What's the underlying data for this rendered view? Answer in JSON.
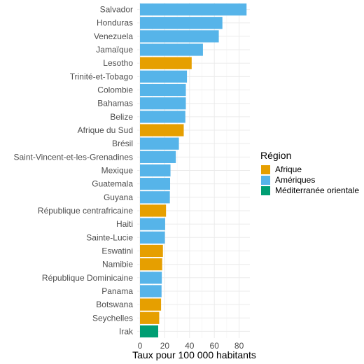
{
  "chart_data": {
    "type": "bar",
    "orientation": "horizontal",
    "categories": [
      "Salvador",
      "Honduras",
      "Venezuela",
      "Jamaïque",
      "Lesotho",
      "Trinité-et-Tobago",
      "Colombie",
      "Bahamas",
      "Belize",
      "Afrique du Sud",
      "Brésil",
      "Saint-Vincent-et-les-Grenadines",
      "Mexique",
      "Guatemala",
      "Guyana",
      "République centrafricaine",
      "Haiti",
      "Sainte-Lucie",
      "Eswatini",
      "Namibie",
      "République Dominicaine",
      "Panama",
      "Botswana",
      "Seychelles",
      "Irak"
    ],
    "values": [
      86.0,
      66.5,
      63.6,
      50.8,
      41.7,
      37.9,
      37.0,
      37.0,
      36.6,
      35.3,
      31.4,
      28.9,
      24.6,
      24.3,
      24.1,
      21.0,
      20.3,
      20.1,
      18.5,
      17.9,
      17.6,
      17.4,
      17.0,
      15.5,
      14.7
    ],
    "regions": [
      "Amériques",
      "Amériques",
      "Amériques",
      "Amériques",
      "Afrique",
      "Amériques",
      "Amériques",
      "Amériques",
      "Amériques",
      "Afrique",
      "Amériques",
      "Amériques",
      "Amériques",
      "Amériques",
      "Amériques",
      "Afrique",
      "Amériques",
      "Amériques",
      "Afrique",
      "Afrique",
      "Amériques",
      "Amériques",
      "Afrique",
      "Afrique",
      "Méditerranée orientale"
    ],
    "xlabel": "Taux pour 100 000 habitants",
    "ylabel": "",
    "xlim": [
      0,
      87
    ],
    "xticks": [
      0,
      20,
      40,
      60,
      80
    ],
    "grid": true,
    "legend": {
      "title": "Région",
      "placement": "right",
      "entries": [
        {
          "name": "Afrique",
          "color": "#E69F00"
        },
        {
          "name": "Amériques",
          "color": "#56B4E9"
        },
        {
          "name": "Méditerranée orientale",
          "color": "#009E73"
        }
      ]
    }
  }
}
